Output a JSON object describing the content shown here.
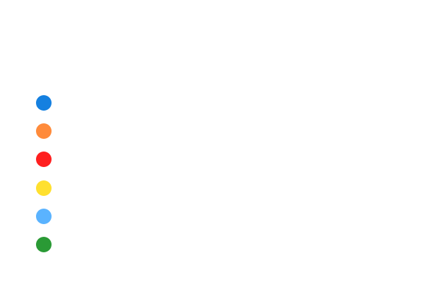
{
  "palette": {
    "swatches": [
      {
        "color": "#1580e0"
      },
      {
        "color": "#ff8b3b"
      },
      {
        "color": "#ff1f1f"
      },
      {
        "color": "#ffe02f"
      },
      {
        "color": "#5ab3ff"
      },
      {
        "color": "#2a9a35"
      }
    ]
  }
}
